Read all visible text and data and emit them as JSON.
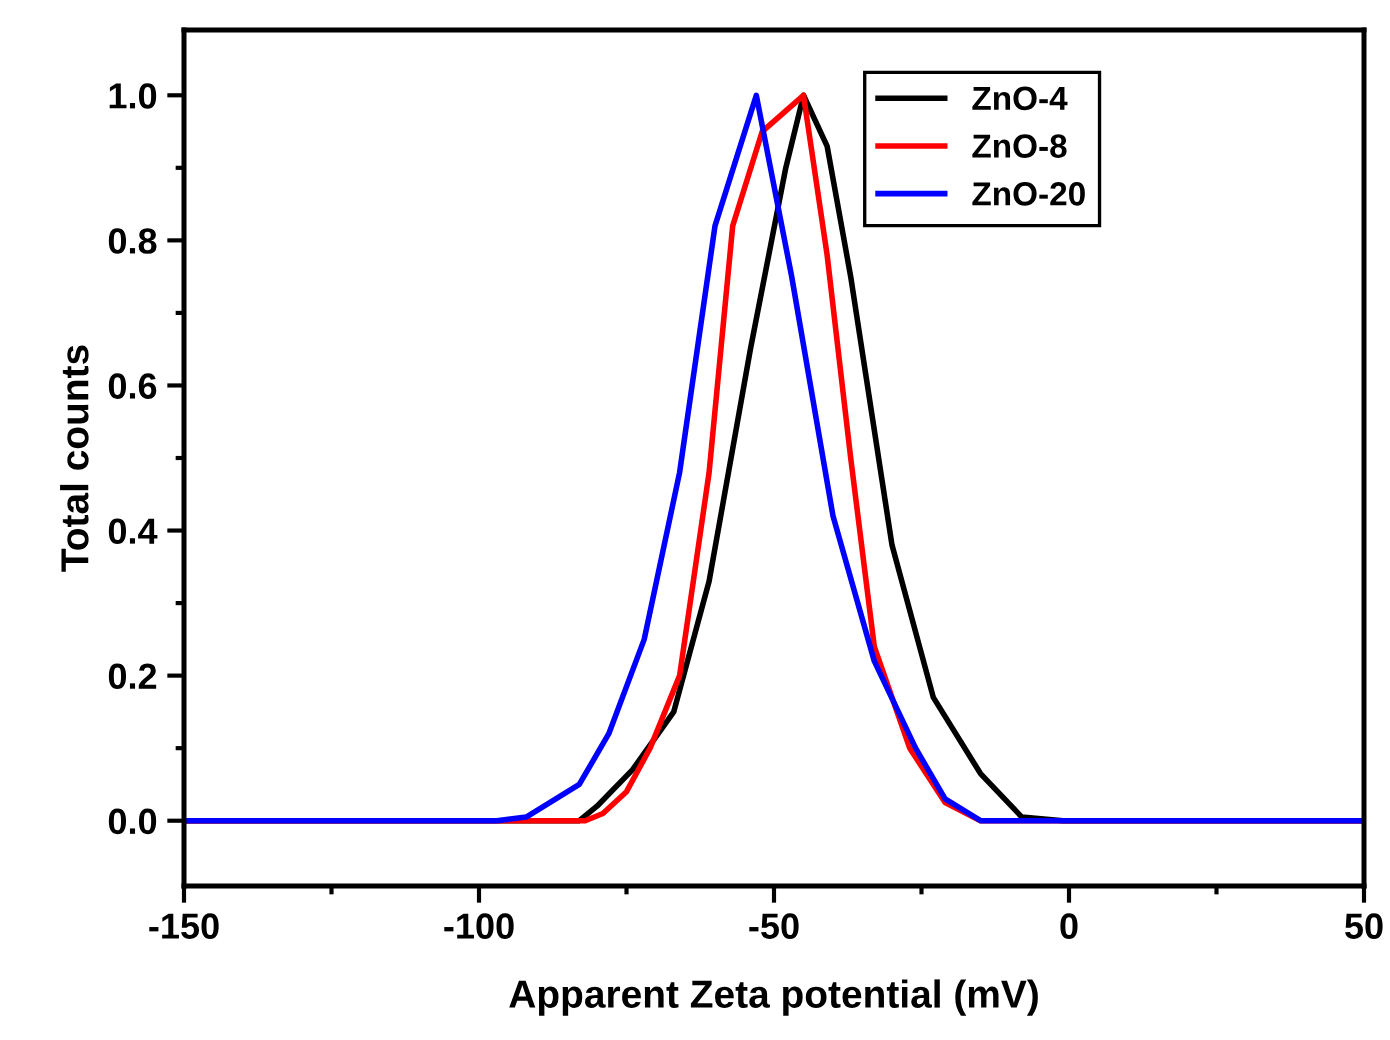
{
  "chart_data": {
    "type": "line",
    "xlabel": "Apparent Zeta potential (mV)",
    "ylabel": "Total counts",
    "xlim": [
      -150,
      50
    ],
    "ylim": [
      -0.09,
      1.09
    ],
    "xticks": [
      -150,
      -100,
      -50,
      0,
      50
    ],
    "yticks": [
      {
        "value": 0,
        "label": "0.0"
      },
      {
        "value": 0.2,
        "label": "0.2"
      },
      {
        "value": 0.4,
        "label": "0.4"
      },
      {
        "value": 0.6,
        "label": "0.6"
      },
      {
        "value": 0.8,
        "label": "0.8"
      },
      {
        "value": 1,
        "label": "1.0"
      }
    ],
    "grid": false,
    "legend": "top right",
    "marker": "none",
    "line_style": "solid",
    "series": [
      {
        "name": "ZnO-4",
        "color": "#000000",
        "x": [
          -150,
          -90,
          -83,
          -80,
          -74,
          -67,
          -61,
          -54,
          -48,
          -45,
          -41,
          -37,
          -30,
          -23,
          -15,
          -8,
          -1,
          50
        ],
        "values": [
          0,
          0,
          0,
          0.02,
          0.07,
          0.15,
          0.33,
          0.65,
          0.9,
          1.0,
          0.93,
          0.75,
          0.38,
          0.17,
          0.065,
          0.005,
          0,
          0
        ]
      },
      {
        "name": "ZnO-8",
        "color": "#ff0000",
        "x": [
          -150,
          -90,
          -82,
          -79,
          -75,
          -71,
          -66,
          -61,
          -57,
          -52,
          -45,
          -41,
          -37,
          -33,
          -27,
          -21,
          -15,
          50
        ],
        "values": [
          0,
          0,
          0,
          0.01,
          0.04,
          0.1,
          0.2,
          0.48,
          0.82,
          0.95,
          1.0,
          0.78,
          0.5,
          0.24,
          0.1,
          0.025,
          0,
          0
        ]
      },
      {
        "name": "ZnO-20",
        "color": "#0000ff",
        "x": [
          -150,
          -97,
          -92,
          -83,
          -78,
          -72,
          -66,
          -60,
          -53,
          -47,
          -40,
          -33,
          -26,
          -21,
          -15,
          50
        ],
        "values": [
          0,
          0,
          0.005,
          0.05,
          0.12,
          0.25,
          0.48,
          0.82,
          1.0,
          0.75,
          0.42,
          0.22,
          0.1,
          0.03,
          0,
          0
        ]
      }
    ]
  }
}
